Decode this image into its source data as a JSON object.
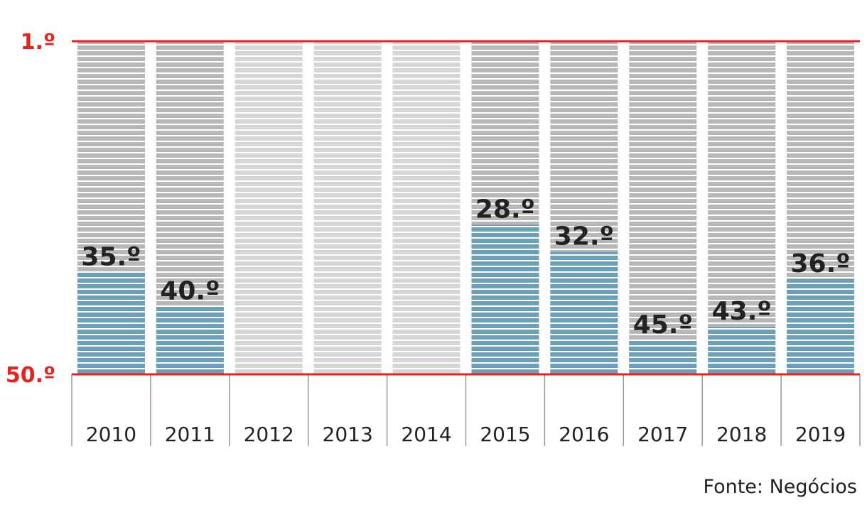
{
  "chart_data": {
    "type": "bar",
    "categories": [
      "2010",
      "2011",
      "2012",
      "2013",
      "2014",
      "2015",
      "2016",
      "2017",
      "2018",
      "2019"
    ],
    "values": [
      35.0,
      40.0,
      null,
      null,
      null,
      28.0,
      32.0,
      45.0,
      43.0,
      36.0
    ],
    "value_labels": [
      "35.º",
      "40.º",
      "",
      "",
      "",
      "28.º",
      "32.º",
      "45.º",
      "43.º",
      "36.º"
    ],
    "y_range": [
      1.0,
      50.0
    ],
    "y_inverted": true,
    "y_tick_labels": [
      "1.º",
      "50.º"
    ],
    "grid": false,
    "source": "Fonte: Negócios"
  },
  "colors": {
    "filled_bar": "#6b9fba",
    "background_stripe_dark": "#b7b7b7",
    "background_stripe_light": "#d6d6d6",
    "reference_line": "#e52320",
    "label_text": "#222222"
  }
}
